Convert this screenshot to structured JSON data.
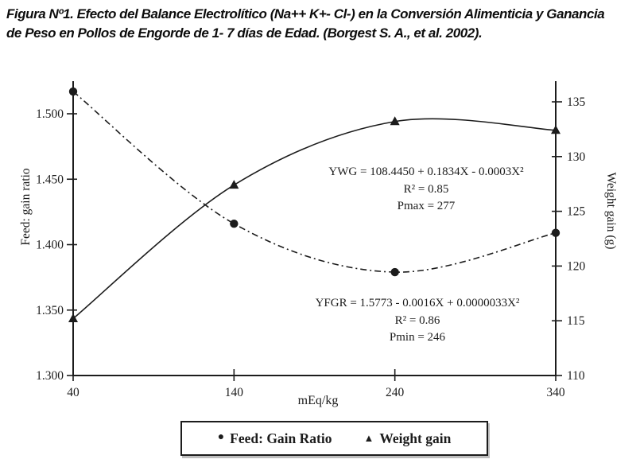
{
  "figure": {
    "caption_line1": "Figura Nº1. Efecto del Balance Electrolítico (Na++ K+- Cl-) en la Conversión Alimenticia y Ganancia",
    "caption_line2": "de Peso en Pollos de Engorde de 1- 7 días de Edad. (Borgest S. A., et al. 2002)."
  },
  "chart_data": {
    "type": "line",
    "x": [
      40,
      140,
      240,
      340
    ],
    "x_ticks": [
      "40",
      "140",
      "240",
      "340"
    ],
    "xlabel": "mEq/kg",
    "xlim": [
      40,
      340
    ],
    "grid": false,
    "left_axis": {
      "label": "Feed: gain ratio",
      "ticks": [
        "1.500",
        "1.450",
        "1.400",
        "1.350",
        "1.300"
      ],
      "range": [
        1.3,
        1.525
      ]
    },
    "right_axis": {
      "label": "Weight gain (g)",
      "ticks": [
        "135",
        "130",
        "125",
        "120",
        "115",
        "110"
      ],
      "range": [
        110,
        136
      ]
    },
    "series": [
      {
        "name": "Feed: Gain Ratio",
        "axis": "left",
        "marker": "circle",
        "line_style": "dash-dot",
        "values": [
          1.517,
          1.416,
          1.379,
          1.409
        ]
      },
      {
        "name": "Weight gain",
        "axis": "right",
        "marker": "triangle",
        "line_style": "solid",
        "values": [
          115.2,
          127.4,
          133.2,
          132.4
        ]
      }
    ],
    "annotations": [
      {
        "lines": [
          "YWG = 108.4450 + 0.1834X - 0.0003X²",
          "R² = 0.85",
          "Pmax = 277"
        ]
      },
      {
        "lines": [
          "YFGR = 1.5773 - 0.0016X + 0.0000033X²",
          "R² = 0.86",
          "Pmin = 246"
        ]
      }
    ],
    "legend_position": "bottom"
  },
  "legend": {
    "items": [
      {
        "marker": "●",
        "label": "Feed: Gain Ratio"
      },
      {
        "marker": "▲",
        "label": "Weight gain"
      }
    ]
  },
  "colors": {
    "ink": "#1c1c1c",
    "background": "#ffffff"
  }
}
